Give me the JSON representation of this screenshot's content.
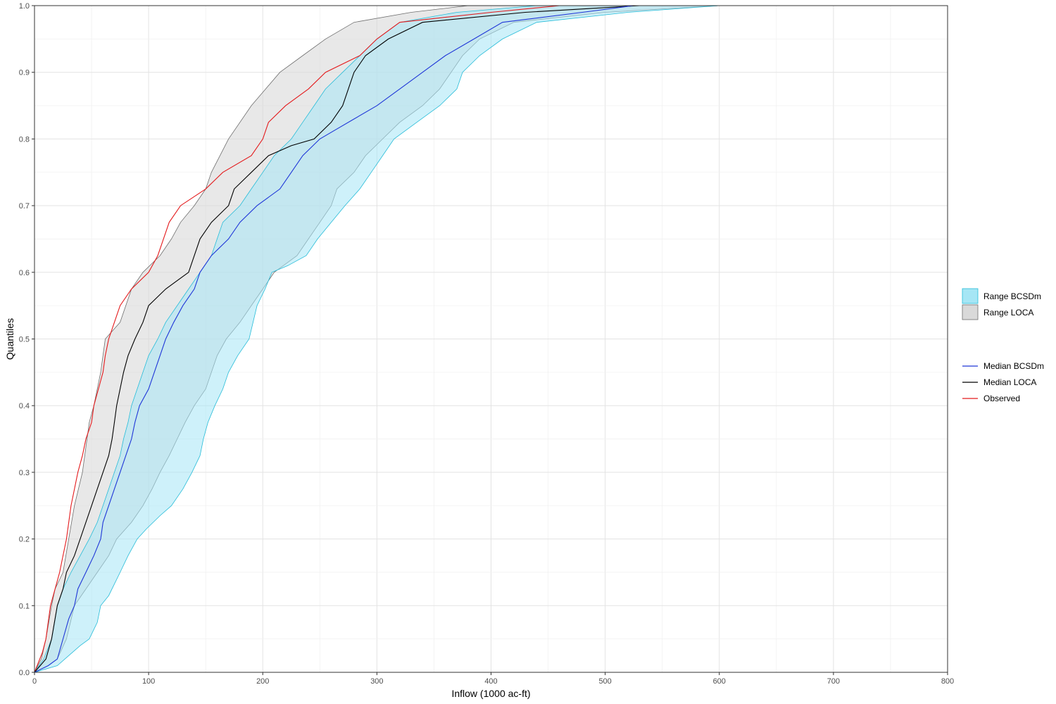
{
  "chart_data": {
    "type": "line",
    "title": "",
    "xlabel": "Inflow (1000 ac-ft)",
    "ylabel": "Quantiles",
    "xlim": [
      0,
      800
    ],
    "ylim": [
      0,
      1
    ],
    "x_ticks": [
      "0",
      "100",
      "200",
      "300",
      "400",
      "500",
      "600",
      "700",
      "800"
    ],
    "y_ticks": [
      "0.0",
      "0.1",
      "0.2",
      "0.3",
      "0.4",
      "0.5",
      "0.6",
      "0.7",
      "0.8",
      "0.9",
      "1.0"
    ],
    "grid": true,
    "legend_position": "right",
    "bands": [
      {
        "name": "Range LOCA",
        "fill": "#d9d9d9",
        "stroke": "#6e6e6e",
        "fill_opacity": 0.6,
        "upper": [
          [
            0,
            0
          ],
          [
            6,
            0.02
          ],
          [
            10,
            0.05
          ],
          [
            15,
            0.1
          ],
          [
            18,
            0.125
          ],
          [
            25,
            0.15
          ],
          [
            30,
            0.2
          ],
          [
            35,
            0.25
          ],
          [
            42,
            0.3
          ],
          [
            48,
            0.375
          ],
          [
            52,
            0.4
          ],
          [
            58,
            0.45
          ],
          [
            62,
            0.5
          ],
          [
            75,
            0.525
          ],
          [
            80,
            0.55
          ],
          [
            85,
            0.575
          ],
          [
            95,
            0.6
          ],
          [
            110,
            0.625
          ],
          [
            120,
            0.65
          ],
          [
            128,
            0.675
          ],
          [
            140,
            0.7
          ],
          [
            150,
            0.725
          ],
          [
            155,
            0.75
          ],
          [
            170,
            0.8
          ],
          [
            190,
            0.85
          ],
          [
            215,
            0.9
          ],
          [
            235,
            0.925
          ],
          [
            255,
            0.95
          ],
          [
            280,
            0.975
          ],
          [
            330,
            0.99
          ],
          [
            380,
            1.0
          ]
        ],
        "lower": [
          [
            0,
            0
          ],
          [
            12,
            0.01
          ],
          [
            20,
            0.02
          ],
          [
            28,
            0.05
          ],
          [
            35,
            0.1
          ],
          [
            45,
            0.125
          ],
          [
            55,
            0.15
          ],
          [
            65,
            0.175
          ],
          [
            72,
            0.2
          ],
          [
            85,
            0.225
          ],
          [
            95,
            0.25
          ],
          [
            103,
            0.275
          ],
          [
            110,
            0.3
          ],
          [
            118,
            0.325
          ],
          [
            125,
            0.35
          ],
          [
            132,
            0.375
          ],
          [
            140,
            0.4
          ],
          [
            150,
            0.425
          ],
          [
            155,
            0.45
          ],
          [
            160,
            0.475
          ],
          [
            168,
            0.5
          ],
          [
            180,
            0.525
          ],
          [
            190,
            0.55
          ],
          [
            200,
            0.575
          ],
          [
            210,
            0.6
          ],
          [
            230,
            0.625
          ],
          [
            240,
            0.65
          ],
          [
            250,
            0.675
          ],
          [
            260,
            0.7
          ],
          [
            265,
            0.725
          ],
          [
            280,
            0.75
          ],
          [
            290,
            0.775
          ],
          [
            305,
            0.8
          ],
          [
            320,
            0.825
          ],
          [
            340,
            0.85
          ],
          [
            355,
            0.875
          ],
          [
            365,
            0.9
          ],
          [
            375,
            0.925
          ],
          [
            390,
            0.95
          ],
          [
            420,
            0.975
          ],
          [
            500,
            0.99
          ],
          [
            600,
            1.0
          ]
        ]
      },
      {
        "name": "Range BCSDm",
        "fill": "#a6e6f5",
        "stroke": "#26bcd8",
        "fill_opacity": 0.55,
        "upper": [
          [
            0,
            0
          ],
          [
            8,
            0.02
          ],
          [
            15,
            0.05
          ],
          [
            20,
            0.1
          ],
          [
            25,
            0.125
          ],
          [
            32,
            0.15
          ],
          [
            40,
            0.175
          ],
          [
            48,
            0.2
          ],
          [
            55,
            0.225
          ],
          [
            60,
            0.25
          ],
          [
            65,
            0.275
          ],
          [
            70,
            0.3
          ],
          [
            75,
            0.325
          ],
          [
            78,
            0.35
          ],
          [
            82,
            0.375
          ],
          [
            85,
            0.4
          ],
          [
            90,
            0.425
          ],
          [
            95,
            0.45
          ],
          [
            100,
            0.475
          ],
          [
            108,
            0.5
          ],
          [
            115,
            0.525
          ],
          [
            125,
            0.55
          ],
          [
            135,
            0.575
          ],
          [
            145,
            0.6
          ],
          [
            155,
            0.625
          ],
          [
            160,
            0.65
          ],
          [
            165,
            0.675
          ],
          [
            180,
            0.7
          ],
          [
            190,
            0.725
          ],
          [
            200,
            0.75
          ],
          [
            210,
            0.775
          ],
          [
            225,
            0.8
          ],
          [
            235,
            0.825
          ],
          [
            245,
            0.85
          ],
          [
            255,
            0.875
          ],
          [
            270,
            0.9
          ],
          [
            285,
            0.925
          ],
          [
            300,
            0.95
          ],
          [
            320,
            0.975
          ],
          [
            370,
            0.99
          ],
          [
            440,
            1.0
          ]
        ],
        "lower": [
          [
            0,
            0
          ],
          [
            20,
            0.01
          ],
          [
            30,
            0.025
          ],
          [
            40,
            0.04
          ],
          [
            48,
            0.05
          ],
          [
            55,
            0.075
          ],
          [
            58,
            0.1
          ],
          [
            65,
            0.115
          ],
          [
            75,
            0.15
          ],
          [
            82,
            0.175
          ],
          [
            90,
            0.2
          ],
          [
            98,
            0.215
          ],
          [
            110,
            0.235
          ],
          [
            120,
            0.25
          ],
          [
            130,
            0.275
          ],
          [
            138,
            0.3
          ],
          [
            145,
            0.325
          ],
          [
            148,
            0.35
          ],
          [
            152,
            0.375
          ],
          [
            158,
            0.4
          ],
          [
            165,
            0.425
          ],
          [
            170,
            0.45
          ],
          [
            178,
            0.475
          ],
          [
            188,
            0.5
          ],
          [
            195,
            0.55
          ],
          [
            202,
            0.575
          ],
          [
            208,
            0.6
          ],
          [
            222,
            0.61
          ],
          [
            238,
            0.625
          ],
          [
            248,
            0.65
          ],
          [
            260,
            0.675
          ],
          [
            272,
            0.7
          ],
          [
            285,
            0.725
          ],
          [
            295,
            0.75
          ],
          [
            305,
            0.775
          ],
          [
            315,
            0.8
          ],
          [
            335,
            0.825
          ],
          [
            355,
            0.85
          ],
          [
            370,
            0.875
          ],
          [
            375,
            0.9
          ],
          [
            390,
            0.925
          ],
          [
            410,
            0.95
          ],
          [
            440,
            0.975
          ],
          [
            520,
            0.99
          ],
          [
            600,
            1.0
          ]
        ]
      }
    ],
    "series": [
      {
        "name": "Observed",
        "color": "#e41a1c",
        "points": [
          [
            0,
            0
          ],
          [
            7,
            0.03
          ],
          [
            10,
            0.05
          ],
          [
            14,
            0.1
          ],
          [
            18,
            0.125
          ],
          [
            22,
            0.15
          ],
          [
            25,
            0.175
          ],
          [
            28,
            0.2
          ],
          [
            32,
            0.25
          ],
          [
            38,
            0.3
          ],
          [
            42,
            0.325
          ],
          [
            45,
            0.35
          ],
          [
            50,
            0.375
          ],
          [
            52,
            0.4
          ],
          [
            56,
            0.425
          ],
          [
            60,
            0.45
          ],
          [
            62,
            0.475
          ],
          [
            65,
            0.5
          ],
          [
            70,
            0.525
          ],
          [
            75,
            0.55
          ],
          [
            85,
            0.575
          ],
          [
            100,
            0.6
          ],
          [
            108,
            0.625
          ],
          [
            113,
            0.65
          ],
          [
            118,
            0.675
          ],
          [
            128,
            0.7
          ],
          [
            150,
            0.725
          ],
          [
            165,
            0.75
          ],
          [
            190,
            0.775
          ],
          [
            200,
            0.8
          ],
          [
            205,
            0.825
          ],
          [
            220,
            0.85
          ],
          [
            240,
            0.875
          ],
          [
            255,
            0.9
          ],
          [
            285,
            0.925
          ],
          [
            300,
            0.95
          ],
          [
            320,
            0.975
          ],
          [
            400,
            0.99
          ],
          [
            460,
            1.0
          ]
        ]
      },
      {
        "name": "Median LOCA",
        "color": "#000000",
        "points": [
          [
            0,
            0
          ],
          [
            10,
            0.02
          ],
          [
            15,
            0.05
          ],
          [
            20,
            0.1
          ],
          [
            25,
            0.125
          ],
          [
            28,
            0.15
          ],
          [
            35,
            0.175
          ],
          [
            40,
            0.2
          ],
          [
            45,
            0.225
          ],
          [
            50,
            0.25
          ],
          [
            55,
            0.275
          ],
          [
            60,
            0.3
          ],
          [
            65,
            0.325
          ],
          [
            68,
            0.35
          ],
          [
            70,
            0.375
          ],
          [
            72,
            0.4
          ],
          [
            75,
            0.425
          ],
          [
            78,
            0.45
          ],
          [
            82,
            0.475
          ],
          [
            88,
            0.5
          ],
          [
            95,
            0.525
          ],
          [
            100,
            0.55
          ],
          [
            115,
            0.575
          ],
          [
            135,
            0.6
          ],
          [
            140,
            0.625
          ],
          [
            145,
            0.65
          ],
          [
            155,
            0.675
          ],
          [
            170,
            0.7
          ],
          [
            175,
            0.725
          ],
          [
            190,
            0.75
          ],
          [
            205,
            0.775
          ],
          [
            225,
            0.79
          ],
          [
            245,
            0.8
          ],
          [
            260,
            0.825
          ],
          [
            270,
            0.85
          ],
          [
            280,
            0.9
          ],
          [
            290,
            0.925
          ],
          [
            310,
            0.95
          ],
          [
            340,
            0.975
          ],
          [
            430,
            0.99
          ],
          [
            530,
            1.0
          ]
        ]
      },
      {
        "name": "Median BCSDm",
        "color": "#1f36d8",
        "points": [
          [
            0,
            0
          ],
          [
            12,
            0.01
          ],
          [
            20,
            0.02
          ],
          [
            25,
            0.05
          ],
          [
            30,
            0.08
          ],
          [
            35,
            0.1
          ],
          [
            38,
            0.125
          ],
          [
            45,
            0.15
          ],
          [
            52,
            0.175
          ],
          [
            58,
            0.2
          ],
          [
            60,
            0.225
          ],
          [
            65,
            0.25
          ],
          [
            70,
            0.275
          ],
          [
            75,
            0.3
          ],
          [
            80,
            0.325
          ],
          [
            85,
            0.35
          ],
          [
            88,
            0.375
          ],
          [
            92,
            0.4
          ],
          [
            100,
            0.425
          ],
          [
            105,
            0.45
          ],
          [
            110,
            0.475
          ],
          [
            115,
            0.5
          ],
          [
            122,
            0.525
          ],
          [
            130,
            0.55
          ],
          [
            140,
            0.575
          ],
          [
            145,
            0.6
          ],
          [
            155,
            0.625
          ],
          [
            170,
            0.65
          ],
          [
            180,
            0.675
          ],
          [
            195,
            0.7
          ],
          [
            215,
            0.725
          ],
          [
            225,
            0.75
          ],
          [
            235,
            0.775
          ],
          [
            250,
            0.8
          ],
          [
            265,
            0.815
          ],
          [
            280,
            0.83
          ],
          [
            300,
            0.85
          ],
          [
            320,
            0.875
          ],
          [
            340,
            0.9
          ],
          [
            360,
            0.925
          ],
          [
            385,
            0.95
          ],
          [
            410,
            0.975
          ],
          [
            480,
            0.99
          ],
          [
            525,
            1.0
          ]
        ]
      }
    ],
    "legend_groups": [
      {
        "kind": "fill",
        "items": [
          {
            "label": "Range BCSDm",
            "fill": "#a6e6f5",
            "stroke": "#26bcd8"
          },
          {
            "label": "Range LOCA",
            "fill": "#d9d9d9",
            "stroke": "#6e6e6e"
          }
        ]
      },
      {
        "kind": "line",
        "items": [
          {
            "label": "Median BCSDm",
            "color": "#1f36d8"
          },
          {
            "label": "Median LOCA",
            "color": "#000000"
          },
          {
            "label": "Observed",
            "color": "#e41a1c"
          }
        ]
      }
    ]
  }
}
